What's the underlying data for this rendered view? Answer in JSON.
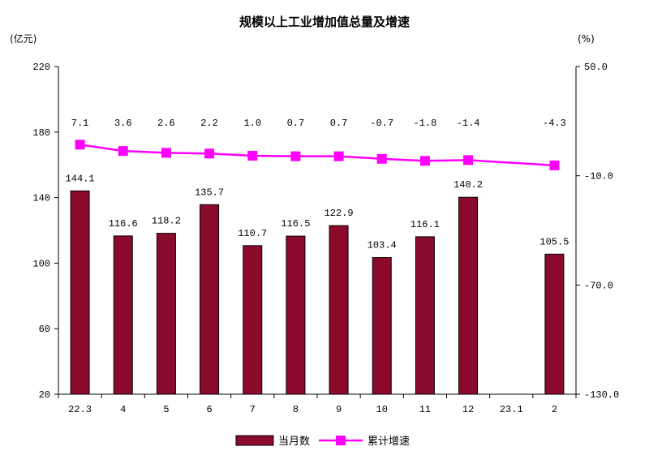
{
  "chart_data": {
    "type": "bar+line",
    "title": "规模以上工业增加值总量及增速",
    "y_left_unit": "(亿元)",
    "y_right_unit": "(%)",
    "categories": [
      "22.3",
      "4",
      "5",
      "6",
      "7",
      "8",
      "9",
      "10",
      "11",
      "12",
      "23.1",
      "2"
    ],
    "y_left_ticks": [
      "220",
      "180",
      "140",
      "100",
      "60",
      "20"
    ],
    "y_right_ticks": [
      "50.0",
      "-10.0",
      "-70.0",
      "-130.0"
    ],
    "y_left_range": [
      20,
      220
    ],
    "y_right_range": [
      -130,
      50
    ],
    "series": [
      {
        "name": "当月数",
        "type": "bar",
        "axis": "left",
        "color": "#8b0a2b",
        "values": [
          144.1,
          116.6,
          118.2,
          135.7,
          110.7,
          116.5,
          122.9,
          103.4,
          116.1,
          140.2,
          null,
          105.5
        ],
        "labels": [
          "144.1",
          "116.6",
          "118.2",
          "135.7",
          "110.7",
          "116.5",
          "122.9",
          "103.4",
          "116.1",
          "140.2",
          "",
          "105.5"
        ]
      },
      {
        "name": "累计增速",
        "type": "line",
        "axis": "right",
        "color": "#ff00ff",
        "values": [
          7.1,
          3.6,
          2.6,
          2.2,
          1.0,
          0.7,
          0.7,
          -0.7,
          -1.8,
          -1.4,
          null,
          -4.3
        ],
        "labels": [
          "7.1",
          "3.6",
          "2.6",
          "2.2",
          "1.0",
          "0.7",
          "0.7",
          "-0.7",
          "-1.8",
          "-1.4",
          "",
          "-4.3"
        ]
      }
    ],
    "legend_position": "bottom-center"
  }
}
